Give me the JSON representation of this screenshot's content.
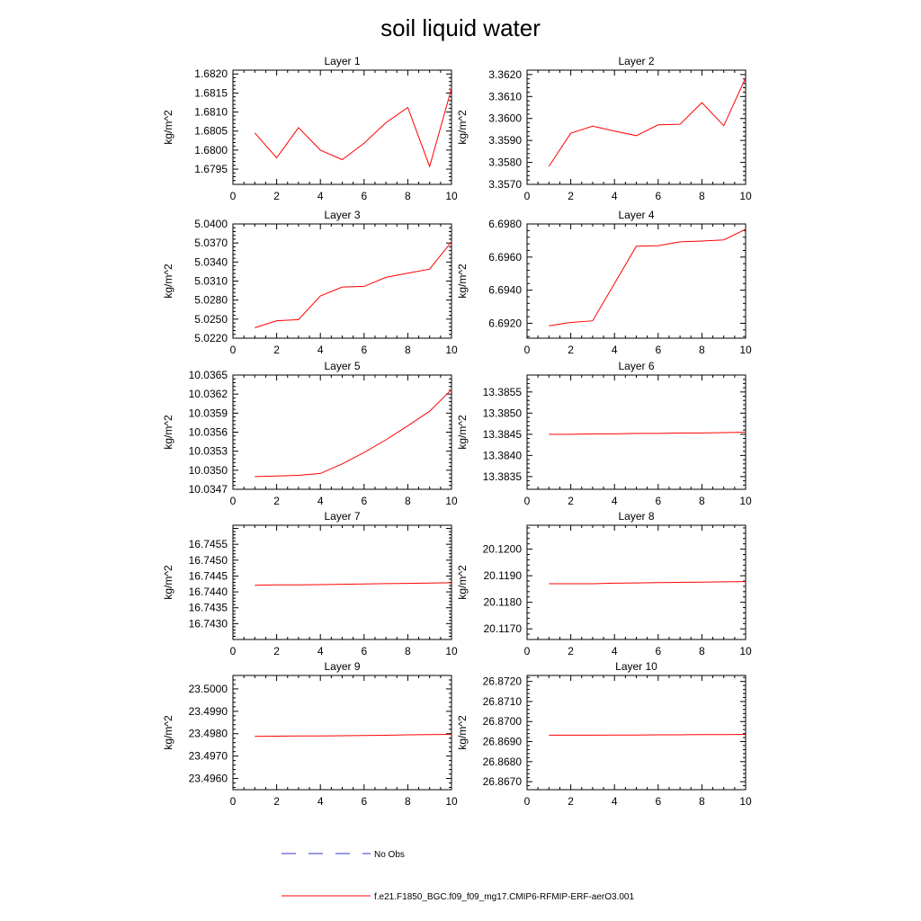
{
  "chart_data": {
    "title": "soil liquid water",
    "type": "line",
    "x": [
      1,
      2,
      3,
      4,
      5,
      6,
      7,
      8,
      9,
      10
    ],
    "xlim": [
      0,
      10
    ],
    "xticks": [
      0,
      2,
      4,
      6,
      8,
      10
    ],
    "ylabel": "kg/m^2",
    "series_color": "#ff0000",
    "obs_color": "#3333cc",
    "legend": [
      {
        "label": "No Obs",
        "style": "dashed",
        "color": "#3333cc"
      },
      {
        "label": "f.e21.F1850_BGC.f09_f09_mg17.CMIP6-RFMIP-ERF-aerO3.001",
        "style": "solid",
        "color": "#ff0000"
      }
    ],
    "panels": [
      {
        "title": "Layer 1",
        "ylim": [
          1.6791,
          1.6821
        ],
        "yticks": [
          1.6795,
          1.68,
          1.6805,
          1.681,
          1.6815,
          1.682
        ],
        "yticklabels": [
          "1.6795",
          "1.6800",
          "1.6805",
          "1.6810",
          "1.6815",
          "1.6820"
        ],
        "values": [
          1.68045,
          1.6798,
          1.68059,
          1.68,
          1.67975,
          1.68018,
          1.68072,
          1.68112,
          1.67957,
          1.68162
        ]
      },
      {
        "title": "Layer 2",
        "ylim": [
          3.357,
          3.3622
        ],
        "yticks": [
          3.357,
          3.358,
          3.359,
          3.36,
          3.361,
          3.362
        ],
        "yticklabels": [
          "3.3570",
          "3.3580",
          "3.3590",
          "3.3600",
          "3.3610",
          "3.3620"
        ],
        "values": [
          3.35782,
          3.35933,
          3.35965,
          3.35943,
          3.35922,
          3.35971,
          3.35974,
          3.36072,
          3.35967,
          3.36185
        ]
      },
      {
        "title": "Layer 3",
        "ylim": [
          5.022,
          5.04
        ],
        "yticks": [
          5.022,
          5.025,
          5.028,
          5.031,
          5.034,
          5.037,
          5.04
        ],
        "yticklabels": [
          "5.0220",
          "5.0250",
          "5.0280",
          "5.0310",
          "5.0340",
          "5.0370",
          "5.0400"
        ],
        "values": [
          5.02365,
          5.02475,
          5.02492,
          5.02866,
          5.03007,
          5.03016,
          5.03158,
          5.03223,
          5.03288,
          5.03719
        ]
      },
      {
        "title": "Layer 4",
        "ylim": [
          6.6911,
          6.698
        ],
        "yticks": [
          6.692,
          6.694,
          6.696,
          6.698
        ],
        "yticklabels": [
          "6.6920",
          "6.6940",
          "6.6960",
          "6.6980"
        ],
        "values": [
          6.69185,
          6.69205,
          6.69215,
          6.6944,
          6.69665,
          6.69669,
          6.69692,
          6.69697,
          6.69704,
          6.69768
        ]
      },
      {
        "title": "Layer 5",
        "ylim": [
          10.0347,
          10.0365
        ],
        "yticks": [
          10.0347,
          10.035,
          10.0353,
          10.0356,
          10.0359,
          10.0362,
          10.0365
        ],
        "yticklabels": [
          "10.0347",
          "10.0350",
          "10.0353",
          "10.0356",
          "10.0359",
          "10.0362",
          "10.0365"
        ],
        "values": [
          10.0349,
          10.03491,
          10.03492,
          10.03495,
          10.0351,
          10.03528,
          10.03548,
          10.0357,
          10.03593,
          10.03627
        ]
      },
      {
        "title": "Layer 6",
        "ylim": [
          13.3832,
          13.3859
        ],
        "yticks": [
          13.3835,
          13.384,
          13.3845,
          13.385,
          13.3855
        ],
        "yticklabels": [
          "13.3835",
          "13.3840",
          "13.3845",
          "13.3850",
          "13.3855"
        ],
        "values": [
          13.3845,
          13.3845,
          13.38451,
          13.38451,
          13.38452,
          13.38452,
          13.38453,
          13.38453,
          13.38454,
          13.38455
        ]
      },
      {
        "title": "Layer 7",
        "ylim": [
          16.7425,
          16.7461
        ],
        "yticks": [
          16.743,
          16.7435,
          16.744,
          16.7445,
          16.745,
          16.7455
        ],
        "yticklabels": [
          "16.7430",
          "16.7435",
          "16.7440",
          "16.7445",
          "16.7450",
          "16.7455"
        ],
        "values": [
          16.74421,
          16.74422,
          16.74422,
          16.74423,
          16.74424,
          16.74425,
          16.74426,
          16.74427,
          16.74428,
          16.74429
        ]
      },
      {
        "title": "Layer 8",
        "ylim": [
          20.1166,
          20.1209
        ],
        "yticks": [
          20.117,
          20.118,
          20.119,
          20.12
        ],
        "yticklabels": [
          "20.1170",
          "20.1180",
          "20.1190",
          "20.1200"
        ],
        "values": [
          20.1187,
          20.1187,
          20.1187,
          20.11872,
          20.11873,
          20.11874,
          20.11875,
          20.11876,
          20.11877,
          20.11878
        ]
      },
      {
        "title": "Layer 9",
        "ylim": [
          23.4955,
          23.5006
        ],
        "yticks": [
          23.496,
          23.497,
          23.498,
          23.499,
          23.5
        ],
        "yticklabels": [
          "23.4960",
          "23.4970",
          "23.4980",
          "23.4990",
          "23.5000"
        ],
        "values": [
          23.49788,
          23.49789,
          23.4979,
          23.4979,
          23.49791,
          23.49792,
          23.49793,
          23.49795,
          23.49796,
          23.49797
        ]
      },
      {
        "title": "Layer 10",
        "ylim": [
          26.8666,
          26.8723
        ],
        "yticks": [
          26.867,
          26.868,
          26.869,
          26.87,
          26.871,
          26.872
        ],
        "yticklabels": [
          "26.8670",
          "26.8680",
          "26.8690",
          "26.8700",
          "26.8710",
          "26.8720"
        ],
        "values": [
          26.86932,
          26.86932,
          26.86932,
          26.86933,
          26.86933,
          26.86934,
          26.86934,
          26.86935,
          26.86935,
          26.86936
        ]
      }
    ]
  }
}
